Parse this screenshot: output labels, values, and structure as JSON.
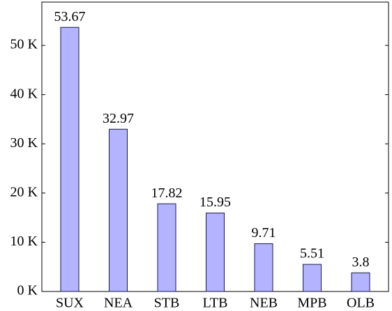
{
  "chart_data": {
    "type": "bar",
    "categories": [
      "SUX",
      "NEA",
      "STB",
      "LTB",
      "NEB",
      "MPB",
      "OLB"
    ],
    "values": [
      53.67,
      32.97,
      17.82,
      15.95,
      9.71,
      5.51,
      3.8
    ],
    "color": "#b3b3ff",
    "ylim": [
      0,
      58.8
    ],
    "yticks": [
      {
        "value": 0,
        "label": "0 K"
      },
      {
        "value": 10,
        "label": "10 K"
      },
      {
        "value": 20,
        "label": "20 K"
      },
      {
        "value": 30,
        "label": "30 K"
      },
      {
        "value": 40,
        "label": "40 K"
      },
      {
        "value": 50,
        "label": "50 K"
      }
    ]
  }
}
